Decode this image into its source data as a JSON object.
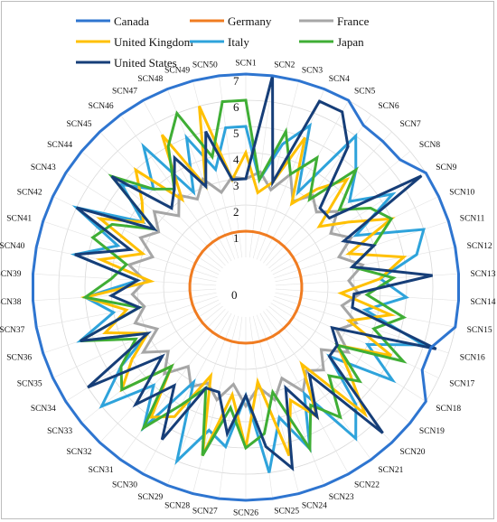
{
  "chart_data": {
    "type": "radar",
    "categories": [
      "SCN1",
      "SCN2",
      "SCN3",
      "SCN4",
      "SCN5",
      "SCN6",
      "SCN7",
      "SCN8",
      "SCN9",
      "SCN10",
      "SCN11",
      "SCN12",
      "SCN13",
      "SCN14",
      "SCN15",
      "SCN16",
      "SCN17",
      "SCN18",
      "SCN19",
      "SCN20",
      "SCN21",
      "SCN22",
      "SCN23",
      "SCN24",
      "SCN25",
      "SCN26",
      "SCN27",
      "SCN28",
      "SCN29",
      "SCN30",
      "SCN31",
      "SCN32",
      "SCN33",
      "SCN34",
      "SCN35",
      "SCN36",
      "SCN37",
      "SCN38",
      "SCN39",
      "SCN40",
      "SCN41",
      "SCN42",
      "SCN43",
      "SCN44",
      "SCN45",
      "SCN46",
      "SCN47",
      "SCN48",
      "SCN49",
      "SCN50"
    ],
    "r_ticks": [
      "0",
      "1",
      "2",
      "3",
      "4",
      "5",
      "6",
      "7"
    ],
    "rlim": [
      0,
      7
    ],
    "grid": true,
    "legend_position": "top",
    "series": [
      {
        "name": "Canada",
        "color": "#2E75D0",
        "values": [
          7,
          7,
          7,
          7,
          7,
          6.5,
          6.5,
          6.5,
          7,
          7,
          7,
          7,
          7,
          7,
          7,
          6.3,
          6.3,
          7,
          7,
          7,
          7,
          7,
          7,
          7,
          7,
          7,
          7,
          7,
          7,
          7,
          7,
          7,
          7,
          7,
          7,
          7,
          7,
          7,
          7,
          7,
          7,
          7,
          7,
          7,
          7,
          7,
          7,
          7,
          7,
          7
        ]
      },
      {
        "name": "Germany",
        "color": "#F07C21",
        "values": [
          1,
          1,
          1,
          1,
          1,
          1,
          1,
          1,
          1,
          1,
          1,
          1,
          1,
          1,
          1,
          1,
          1,
          1,
          1,
          1,
          1,
          1,
          1,
          1,
          1,
          1,
          1,
          1,
          1,
          1,
          1,
          1,
          1,
          1,
          1,
          1,
          1,
          1,
          1,
          1,
          1,
          1,
          1,
          1,
          1,
          1,
          1,
          1,
          1,
          1
        ]
      },
      {
        "name": "France",
        "color": "#A6A6A6",
        "values": [
          3,
          3.3,
          2.7,
          3.5,
          2.6,
          3.2,
          2.8,
          3.4,
          2.7,
          3.3,
          2.6,
          3.4,
          2.8,
          3.2,
          2.6,
          3.3,
          2.7,
          3.5,
          2.6,
          3.2,
          2.8,
          3.4,
          2.6,
          3.3,
          2.7,
          3.4,
          2.6,
          3.3,
          2.8,
          3.2,
          2.6,
          3.4,
          2.7,
          3.5,
          2.6,
          3.3,
          2.8,
          3.2,
          2.7,
          3.4,
          2.6,
          3.3,
          2.8,
          3.4,
          2.6,
          3.2,
          2.7,
          3.3,
          2.6,
          3.1
        ]
      },
      {
        "name": "United Kingdom",
        "color": "#FFC000",
        "values": [
          4,
          2.5,
          3,
          5,
          2.5,
          3.5,
          4.5,
          2.5,
          3.5,
          5,
          3,
          5,
          4,
          2.5,
          4.5,
          3,
          5,
          3,
          4,
          5.5,
          2.5,
          4.5,
          3.5,
          5.5,
          2.5,
          5,
          3,
          5.5,
          2.5,
          4.5,
          5,
          3,
          5,
          4,
          3,
          4.5,
          3.5,
          5,
          2.5,
          4.5,
          3,
          5,
          3.5,
          4,
          5,
          3,
          5.5,
          3,
          6,
          3
        ]
      },
      {
        "name": "Italy",
        "color": "#2EA3DB",
        "values": [
          5,
          3,
          4.5,
          5.5,
          3,
          6,
          5,
          4,
          5.5,
          3.5,
          6,
          5.5,
          4,
          5,
          3.5,
          6,
          4,
          5.5,
          3,
          5,
          6,
          3.5,
          5.5,
          4,
          6,
          3,
          5,
          4.5,
          6,
          3,
          5.5,
          4,
          6,
          4.5,
          3,
          5.5,
          4,
          5,
          3,
          5.5,
          4,
          6,
          3.5,
          5,
          4,
          5.5,
          3,
          5,
          3.5,
          5
        ]
      },
      {
        "name": "Japan",
        "color": "#3FAE35",
        "values": [
          6,
          3,
          5,
          3.5,
          4.5,
          3,
          5,
          3.5,
          4.5,
          5,
          4,
          3,
          4.5,
          3.5,
          5,
          4,
          5.5,
          3,
          4.5,
          3.5,
          5,
          4,
          5.5,
          3,
          4.5,
          5,
          3.5,
          5.5,
          3,
          4,
          5.5,
          3,
          5,
          4.5,
          3.5,
          5.5,
          3,
          5,
          4,
          3.5,
          5,
          4.5,
          3,
          5.5,
          4,
          3.5,
          5,
          6,
          4,
          6
        ]
      },
      {
        "name": "United States",
        "color": "#163E78",
        "values": [
          3,
          7,
          3,
          6.5,
          6.5,
          5.5,
          3,
          3,
          6.8,
          3,
          4,
          3,
          6,
          3,
          3,
          6.5,
          2.5,
          3,
          3,
          6.5,
          3,
          4.5,
          3,
          6,
          5,
          3,
          4.5,
          3,
          3,
          5.5,
          3.5,
          5,
          3,
          6,
          3,
          5.5,
          3,
          4,
          3,
          5.5,
          3.5,
          6,
          3,
          5.5,
          3,
          3.5,
          4.5,
          3,
          5,
          3
        ]
      }
    ]
  }
}
